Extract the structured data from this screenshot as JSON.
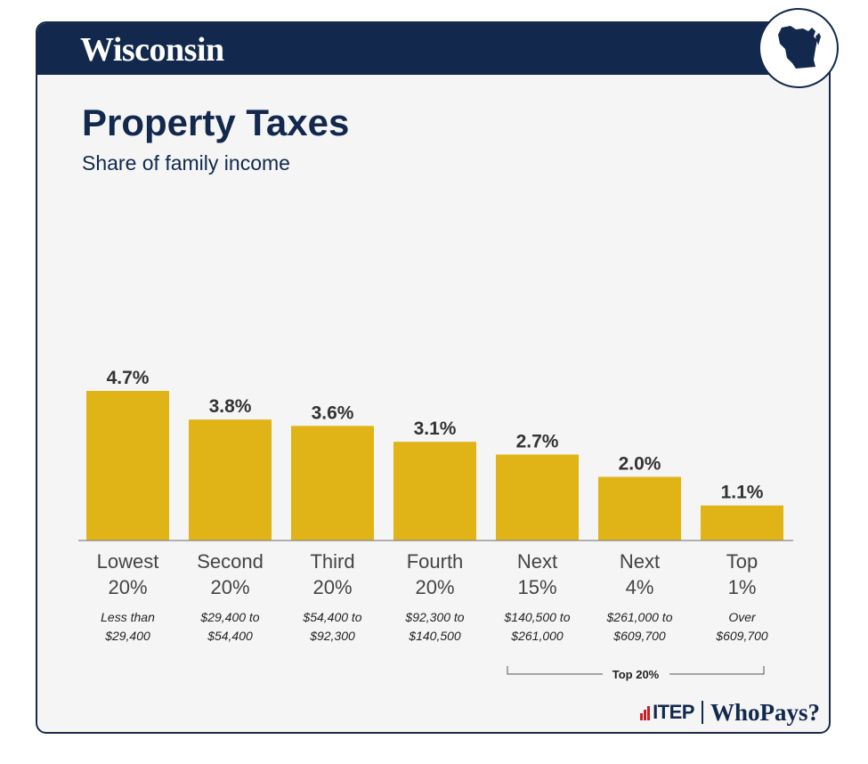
{
  "header": {
    "state": "Wisconsin",
    "map_icon": "wisconsin-state-map-icon"
  },
  "colors": {
    "navy": "#12294d",
    "bar": "#e0b416",
    "background": "#f5f5f5"
  },
  "chart_data": {
    "type": "bar",
    "title": "Property Taxes",
    "subtitle": "Share of family income",
    "categories": [
      [
        "Lowest",
        "20%"
      ],
      [
        "Second",
        "20%"
      ],
      [
        "Third",
        "20%"
      ],
      [
        "Fourth",
        "20%"
      ],
      [
        "Next",
        "15%"
      ],
      [
        "Next",
        "4%"
      ],
      [
        "Top",
        "1%"
      ]
    ],
    "income_ranges": [
      [
        "Less than",
        "$29,400"
      ],
      [
        "$29,400 to",
        "$54,400"
      ],
      [
        "$54,400 to",
        "$92,300"
      ],
      [
        "$92,300 to",
        "$140,500"
      ],
      [
        "$140,500 to",
        "$261,000"
      ],
      [
        "$261,000 to",
        "$609,700"
      ],
      [
        "Over",
        "$609,700"
      ]
    ],
    "values": [
      4.7,
      3.8,
      3.6,
      3.1,
      2.7,
      2.0,
      1.1
    ],
    "value_labels": [
      "4.7%",
      "3.8%",
      "3.6%",
      "3.1%",
      "2.7%",
      "2.0%",
      "1.1%"
    ],
    "bracket_label": "Top 20%",
    "ylim": [
      0,
      4.7
    ],
    "grid": false
  },
  "footer": {
    "org": "ITEP",
    "publication": "WhoPays?"
  }
}
